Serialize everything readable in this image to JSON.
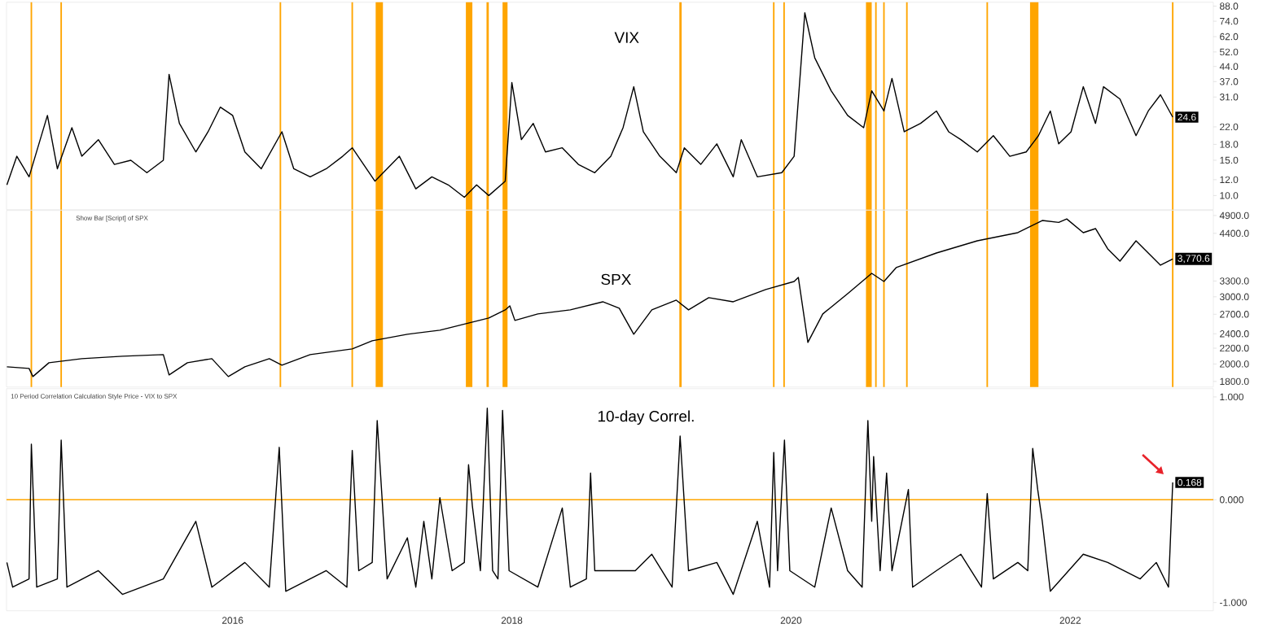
{
  "chart_data": [
    {
      "type": "line",
      "title": "VIX",
      "x": [
        "2014-05-21",
        "2014-06-16",
        "2014-07-18",
        "2014-09-04",
        "2014-09-30",
        "2014-11-07",
        "2014-12-03",
        "2015-01-15",
        "2015-02-26",
        "2015-04-10",
        "2015-05-22",
        "2015-07-04",
        "2015-07-19",
        "2015-08-15",
        "2015-09-27",
        "2015-10-29",
        "2015-11-30",
        "2016-01-01",
        "2016-02-02",
        "2016-03-16",
        "2016-05-09",
        "2016-06-09",
        "2016-07-22",
        "2016-09-02",
        "2016-10-15",
        "2016-11-09",
        "2017-01-08",
        "2017-03-13",
        "2017-04-25",
        "2017-06-06",
        "2017-07-19",
        "2017-08-30",
        "2017-10-01",
        "2017-11-02",
        "2017-12-15",
        "2018-01-01",
        "2018-01-26",
        "2018-02-26",
        "2018-03-30",
        "2018-05-13",
        "2018-06-24",
        "2018-08-06",
        "2018-09-17",
        "2018-10-19",
        "2018-11-16",
        "2018-12-11",
        "2019-01-23",
        "2019-03-07",
        "2019-03-28",
        "2019-05-10",
        "2019-06-21",
        "2019-08-03",
        "2019-08-24",
        "2019-10-05",
        "2019-12-08",
        "2020-01-09",
        "2020-02-06",
        "2020-03-03",
        "2020-04-15",
        "2020-05-28",
        "2020-07-09",
        "2020-07-30",
        "2020-08-31",
        "2020-09-21",
        "2020-10-23",
        "2020-12-05",
        "2021-01-16",
        "2021-02-17",
        "2021-03-21",
        "2021-05-03",
        "2021-06-14",
        "2021-07-27",
        "2021-09-08",
        "2021-10-10",
        "2021-11-10",
        "2021-12-02",
        "2022-01-03",
        "2022-02-04",
        "2022-03-08",
        "2022-03-29",
        "2022-05-11",
        "2022-06-22",
        "2022-07-24",
        "2022-08-25",
        "2022-09-26"
      ],
      "series": [
        {
          "color": "#000000",
          "values": [
            11.3,
            15.7,
            12.4,
            25.1,
            13.6,
            21.8,
            15.7,
            19.0,
            14.3,
            15.0,
            13.0,
            15.0,
            40.2,
            22.9,
            16.5,
            20.8,
            27.6,
            25.1,
            16.5,
            13.6,
            20.8,
            13.6,
            12.4,
            13.6,
            15.7,
            17.3,
            11.8,
            15.7,
            10.8,
            12.4,
            11.3,
            9.8,
            11.3,
            10.0,
            11.8,
            36.6,
            19.0,
            22.9,
            16.5,
            17.3,
            14.3,
            13.0,
            15.7,
            21.8,
            34.9,
            20.8,
            15.7,
            13.0,
            17.3,
            14.3,
            18.1,
            12.4,
            19.0,
            12.4,
            13.0,
            15.7,
            81.5,
            48.6,
            33.3,
            25.1,
            21.8,
            33.3,
            26.4,
            38.4,
            20.8,
            22.9,
            26.4,
            20.8,
            19.0,
            16.5,
            19.9,
            15.7,
            16.5,
            19.9,
            26.4,
            18.1,
            20.8,
            34.9,
            22.9,
            34.9,
            30.3,
            19.9,
            26.4,
            31.8,
            24.6
          ]
        }
      ],
      "xlim": [
        "2014-05-20",
        "2023-01-10"
      ],
      "ylim": [
        8.5,
        92
      ],
      "log": "y",
      "tick_labels": "y",
      "yticks": [
        {
          "value": 10,
          "label": "10.0"
        },
        {
          "value": 12,
          "label": "12.0"
        },
        {
          "value": 15,
          "label": "15.0"
        },
        {
          "value": 18,
          "label": "18.0"
        },
        {
          "value": 22,
          "label": "22.0"
        },
        {
          "value": 31,
          "label": "31.0"
        },
        {
          "value": 37,
          "label": "37.0"
        },
        {
          "value": 44,
          "label": "44.0"
        },
        {
          "value": 52,
          "label": "52.0"
        },
        {
          "value": 62,
          "label": "62.0"
        },
        {
          "value": 74,
          "label": "74.0"
        },
        {
          "value": 88,
          "label": "88.0"
        }
      ],
      "bands": [
        {
          "axis": "x",
          "from": "2014-07-22",
          "to": "2014-07-26",
          "color": "#ffa500"
        },
        {
          "axis": "x",
          "from": "2014-10-08",
          "to": "2014-10-12",
          "color": "#ffa500"
        },
        {
          "axis": "x",
          "from": "2016-05-03",
          "to": "2016-05-07",
          "color": "#ffa500"
        },
        {
          "axis": "x",
          "from": "2016-11-07",
          "to": "2016-11-11",
          "color": "#ffa500"
        },
        {
          "axis": "x",
          "from": "2017-01-10",
          "to": "2017-01-29",
          "color": "#ffa500"
        },
        {
          "axis": "x",
          "from": "2017-09-03",
          "to": "2017-09-20",
          "color": "#ffa500"
        },
        {
          "axis": "x",
          "from": "2017-10-27",
          "to": "2017-11-02",
          "color": "#ffa500"
        },
        {
          "axis": "x",
          "from": "2017-12-08",
          "to": "2017-12-21",
          "color": "#ffa500"
        },
        {
          "axis": "x",
          "from": "2019-03-15",
          "to": "2019-03-21",
          "color": "#ffa500"
        },
        {
          "axis": "x",
          "from": "2019-11-15",
          "to": "2019-11-19",
          "color": "#ffa500"
        },
        {
          "axis": "x",
          "from": "2019-12-12",
          "to": "2019-12-16",
          "color": "#ffa500"
        },
        {
          "axis": "x",
          "from": "2020-07-15",
          "to": "2020-07-30",
          "color": "#ffa500"
        },
        {
          "axis": "x",
          "from": "2020-08-08",
          "to": "2020-08-12",
          "color": "#ffa500"
        },
        {
          "axis": "x",
          "from": "2020-08-29",
          "to": "2020-09-02",
          "color": "#ffa500"
        },
        {
          "axis": "x",
          "from": "2020-10-28",
          "to": "2020-11-01",
          "color": "#ffa500"
        },
        {
          "axis": "x",
          "from": "2021-05-27",
          "to": "2021-05-31",
          "color": "#ffa500"
        },
        {
          "axis": "x",
          "from": "2021-09-18",
          "to": "2021-10-10",
          "color": "#ffa500"
        },
        {
          "axis": "x",
          "from": "2022-09-24",
          "to": "2022-09-28",
          "color": "#ffa500"
        }
      ],
      "annotations": [
        {
          "text": "24.6",
          "x": "2022-09-26",
          "y": 24.6
        }
      ]
    },
    {
      "type": "line",
      "title": "SPX",
      "subtitle": "Show Bar [Script] of SPX",
      "x": [
        "2014-05-21",
        "2014-07-18",
        "2014-07-28",
        "2014-09-08",
        "2014-12-03",
        "2015-03-19",
        "2015-07-04",
        "2015-07-19",
        "2015-09-05",
        "2015-11-08",
        "2015-12-21",
        "2016-02-02",
        "2016-04-06",
        "2016-05-09",
        "2016-07-22",
        "2016-11-09",
        "2017-01-01",
        "2017-04-03",
        "2017-06-27",
        "2017-11-02",
        "2017-12-15",
        "2017-12-27",
        "2018-01-09",
        "2018-03-10",
        "2018-06-03",
        "2018-08-27",
        "2018-10-09",
        "2018-11-16",
        "2019-01-02",
        "2019-03-07",
        "2019-04-08",
        "2019-05-31",
        "2019-08-03",
        "2019-10-27",
        "2020-01-09",
        "2020-01-20",
        "2020-02-14",
        "2020-03-24",
        "2020-05-28",
        "2020-07-30",
        "2020-08-31",
        "2020-10-02",
        "2021-01-16",
        "2021-05-03",
        "2021-08-17",
        "2021-10-20",
        "2021-12-02",
        "2021-12-23",
        "2022-02-04",
        "2022-03-08",
        "2022-04-09",
        "2022-05-11",
        "2022-06-22",
        "2022-07-24",
        "2022-08-25",
        "2022-09-26"
      ],
      "series": [
        {
          "color": "#000000",
          "values": [
            1966,
            1947,
            1854,
            2015,
            2065,
            2096,
            2116,
            1872,
            2015,
            2065,
            1854,
            1966,
            2065,
            1986,
            2116,
            2190,
            2300,
            2393,
            2452,
            2639,
            2772,
            2841,
            2601,
            2705,
            2772,
            2911,
            2799,
            2393,
            2772,
            2940,
            2772,
            2984,
            2911,
            3134,
            3291,
            3373,
            2278,
            2705,
            3058,
            3457,
            3291,
            3578,
            3908,
            4207,
            4418,
            4755,
            4700,
            4800,
            4418,
            4528,
            4005,
            3721,
            4207,
            3908,
            3631,
            3770.6
          ]
        }
      ],
      "xlim": [
        "2014-05-20",
        "2023-01-10"
      ],
      "ylim": [
        1740,
        5050
      ],
      "log": "y",
      "tick_labels": "y",
      "yticks": [
        {
          "value": 1800,
          "label": "1800.0"
        },
        {
          "value": 2000,
          "label": "2000.0"
        },
        {
          "value": 2200,
          "label": "2200.0"
        },
        {
          "value": 2400,
          "label": "2400.0"
        },
        {
          "value": 2700,
          "label": "2700.0"
        },
        {
          "value": 3000,
          "label": "3000.0"
        },
        {
          "value": 3300,
          "label": "3300.0"
        },
        {
          "value": 4400,
          "label": "4400.0"
        },
        {
          "value": 4900,
          "label": "4900.0"
        }
      ],
      "bands": [
        {
          "axis": "x",
          "from": "2014-07-22",
          "to": "2014-07-26",
          "color": "#ffa500"
        },
        {
          "axis": "x",
          "from": "2014-10-08",
          "to": "2014-10-12",
          "color": "#ffa500"
        },
        {
          "axis": "x",
          "from": "2016-05-03",
          "to": "2016-05-07",
          "color": "#ffa500"
        },
        {
          "axis": "x",
          "from": "2016-11-07",
          "to": "2016-11-11",
          "color": "#ffa500"
        },
        {
          "axis": "x",
          "from": "2017-01-10",
          "to": "2017-01-29",
          "color": "#ffa500"
        },
        {
          "axis": "x",
          "from": "2017-09-03",
          "to": "2017-09-20",
          "color": "#ffa500"
        },
        {
          "axis": "x",
          "from": "2017-10-27",
          "to": "2017-11-02",
          "color": "#ffa500"
        },
        {
          "axis": "x",
          "from": "2017-12-08",
          "to": "2017-12-21",
          "color": "#ffa500"
        },
        {
          "axis": "x",
          "from": "2019-03-15",
          "to": "2019-03-21",
          "color": "#ffa500"
        },
        {
          "axis": "x",
          "from": "2019-11-15",
          "to": "2019-11-19",
          "color": "#ffa500"
        },
        {
          "axis": "x",
          "from": "2019-12-12",
          "to": "2019-12-16",
          "color": "#ffa500"
        },
        {
          "axis": "x",
          "from": "2020-07-15",
          "to": "2020-07-30",
          "color": "#ffa500"
        },
        {
          "axis": "x",
          "from": "2020-08-08",
          "to": "2020-08-12",
          "color": "#ffa500"
        },
        {
          "axis": "x",
          "from": "2020-08-29",
          "to": "2020-09-02",
          "color": "#ffa500"
        },
        {
          "axis": "x",
          "from": "2020-10-28",
          "to": "2020-11-01",
          "color": "#ffa500"
        },
        {
          "axis": "x",
          "from": "2021-05-27",
          "to": "2021-05-31",
          "color": "#ffa500"
        },
        {
          "axis": "x",
          "from": "2021-09-18",
          "to": "2021-10-10",
          "color": "#ffa500"
        },
        {
          "axis": "x",
          "from": "2022-09-24",
          "to": "2022-09-28",
          "color": "#ffa500"
        }
      ],
      "annotations": [
        {
          "text": "3,770.6",
          "x": "2022-09-26",
          "y": 3770.6
        }
      ]
    },
    {
      "type": "line",
      "title": "10-day Correl.",
      "subtitle": "10 Period Correlation Calculation Style Price - VIX to SPX",
      "x": [
        "2014-05-21",
        "2014-06-05",
        "2014-07-18",
        "2014-07-24",
        "2014-08-07",
        "2014-09-30",
        "2014-10-10",
        "2014-10-25",
        "2015-01-15",
        "2015-03-19",
        "2015-07-04",
        "2015-09-27",
        "2015-11-08",
        "2016-02-02",
        "2016-04-06",
        "2016-05-02",
        "2016-05-19",
        "2016-09-02",
        "2016-10-26",
        "2016-11-09",
        "2016-11-26",
        "2017-01-01",
        "2017-01-14",
        "2017-02-09",
        "2017-04-03",
        "2017-04-25",
        "2017-05-16",
        "2017-06-06",
        "2017-06-27",
        "2017-07-29",
        "2017-08-30",
        "2017-09-10",
        "2017-09-20",
        "2017-10-11",
        "2017-10-29",
        "2017-11-12",
        "2017-11-26",
        "2017-12-08",
        "2017-12-25",
        "2018-03-10",
        "2018-05-13",
        "2018-06-03",
        "2018-07-15",
        "2018-07-26",
        "2018-08-06",
        "2018-11-20",
        "2019-01-02",
        "2019-02-24",
        "2019-03-17",
        "2019-04-08",
        "2019-06-21",
        "2019-08-03",
        "2019-10-05",
        "2019-11-06",
        "2019-11-17",
        "2019-11-27",
        "2019-12-15",
        "2019-12-29",
        "2020-03-03",
        "2020-04-15",
        "2020-05-28",
        "2020-07-05",
        "2020-07-20",
        "2020-07-30",
        "2020-08-04",
        "2020-08-21",
        "2020-09-07",
        "2020-09-21",
        "2020-11-03",
        "2020-11-14",
        "2021-01-16",
        "2021-03-21",
        "2021-05-14",
        "2021-05-29",
        "2021-06-14",
        "2021-08-17",
        "2021-09-12",
        "2021-09-25",
        "2021-10-08",
        "2021-10-20",
        "2021-11-10",
        "2022-02-04",
        "2022-04-09",
        "2022-05-21",
        "2022-07-03",
        "2022-08-14",
        "2022-09-15",
        "2022-09-26"
      ],
      "series": [
        {
          "color": "#000000",
          "values": [
            -0.61,
            -0.85,
            -0.77,
            0.54,
            -0.85,
            -0.77,
            0.58,
            -0.85,
            -0.69,
            -0.92,
            -0.77,
            -0.21,
            -0.85,
            -0.61,
            -0.85,
            0.51,
            -0.89,
            -0.69,
            -0.85,
            0.48,
            -0.69,
            -0.61,
            0.77,
            -0.77,
            -0.37,
            -0.85,
            -0.21,
            -0.77,
            0.02,
            -0.69,
            -0.61,
            0.34,
            -0.06,
            -0.69,
            0.89,
            -0.69,
            -0.77,
            0.87,
            -0.69,
            -0.85,
            -0.08,
            -0.85,
            -0.77,
            0.26,
            -0.69,
            -0.69,
            -0.53,
            -0.85,
            0.62,
            -0.69,
            -0.61,
            -0.92,
            -0.21,
            -0.85,
            0.46,
            -0.69,
            0.58,
            -0.69,
            -0.85,
            -0.08,
            -0.69,
            -0.85,
            0.77,
            -0.21,
            0.42,
            -0.69,
            0.26,
            -0.69,
            0.1,
            -0.85,
            -0.69,
            -0.53,
            -0.85,
            0.06,
            -0.77,
            -0.61,
            -0.69,
            0.5,
            0.1,
            -0.21,
            -0.89,
            -0.53,
            -0.61,
            -0.69,
            -0.77,
            -0.61,
            -0.85,
            0.168
          ]
        }
      ],
      "xlim": [
        "2014-05-20",
        "2023-01-10"
      ],
      "ylim": [
        -1.08,
        1.08
      ],
      "yticks": [
        {
          "value": -1,
          "label": "-1.000"
        },
        {
          "value": 0,
          "label": "0.000"
        },
        {
          "value": 1,
          "label": "1.000"
        }
      ],
      "xticks": [
        {
          "value": "2016-01-01",
          "label": "2016"
        },
        {
          "value": "2018-01-01",
          "label": "2018"
        },
        {
          "value": "2020-01-01",
          "label": "2020"
        },
        {
          "value": "2022-01-01",
          "label": "2022"
        }
      ],
      "ref_lines": [
        {
          "axis": "y",
          "value": 0,
          "color": "#ffa500"
        }
      ],
      "annotations": [
        {
          "text": "0.168",
          "x": "2022-09-26",
          "y": 0.168
        }
      ]
    }
  ]
}
